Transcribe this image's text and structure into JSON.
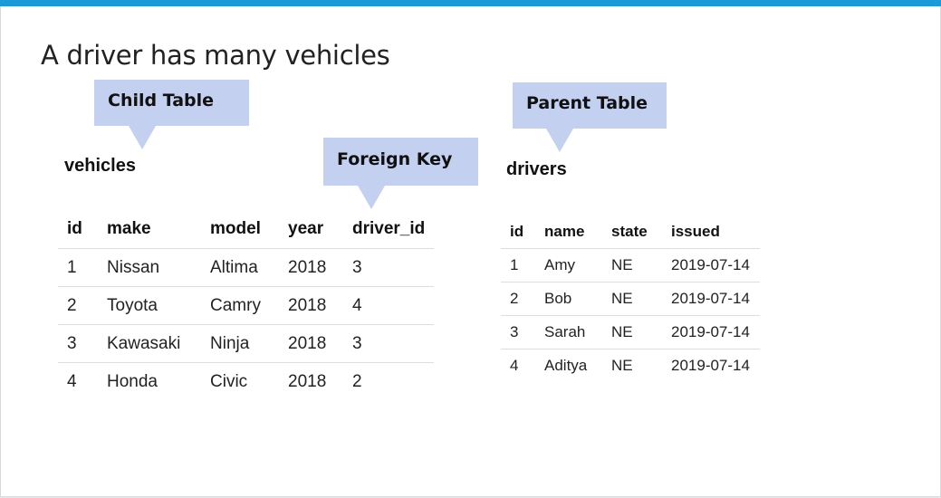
{
  "title": "A driver has many vehicles",
  "callouts": {
    "child": "Child Table",
    "foreign_key": "Foreign Key",
    "parent": "Parent Table"
  },
  "vehicles": {
    "name": "vehicles",
    "columns": [
      "id",
      "make",
      "model",
      "year",
      "driver_id"
    ],
    "rows": [
      [
        "1",
        "Nissan",
        "Altima",
        "2018",
        "3"
      ],
      [
        "2",
        "Toyota",
        "Camry",
        "2018",
        "4"
      ],
      [
        "3",
        "Kawasaki",
        "Ninja",
        "2018",
        "3"
      ],
      [
        "4",
        "Honda",
        "Civic",
        "2018",
        "2"
      ]
    ]
  },
  "drivers": {
    "name": "drivers",
    "columns": [
      "id",
      "name",
      "state",
      "issued"
    ],
    "rows": [
      [
        "1",
        "Amy",
        "NE",
        "2019-07-14"
      ],
      [
        "2",
        "Bob",
        "NE",
        "2019-07-14"
      ],
      [
        "3",
        "Sarah",
        "NE",
        "2019-07-14"
      ],
      [
        "4",
        "Aditya",
        "NE",
        "2019-07-14"
      ]
    ]
  },
  "colors": {
    "accent_bar": "#1a9ad6",
    "callout_fill": "#c3d0f0"
  }
}
